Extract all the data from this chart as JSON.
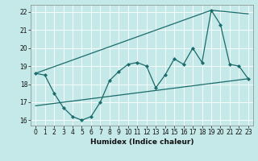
{
  "xlabel": "Humidex (Indice chaleur)",
  "background_color": "#c5e8e8",
  "grid_color": "#ffffff",
  "line_color": "#1a6b6b",
  "xlim": [
    -0.5,
    23.5
  ],
  "ylim": [
    15.7,
    22.4
  ],
  "yticks": [
    16,
    17,
    18,
    19,
    20,
    21,
    22
  ],
  "xticks": [
    0,
    1,
    2,
    3,
    4,
    5,
    6,
    7,
    8,
    9,
    10,
    11,
    12,
    13,
    14,
    15,
    16,
    17,
    18,
    19,
    20,
    21,
    22,
    23
  ],
  "main_x": [
    0,
    1,
    2,
    3,
    4,
    5,
    6,
    7,
    8,
    9,
    10,
    11,
    12,
    13,
    14,
    15,
    16,
    17,
    18,
    19,
    20,
    21,
    22,
    23
  ],
  "main_y": [
    18.6,
    18.5,
    17.5,
    16.7,
    16.2,
    16.0,
    16.2,
    17.0,
    18.2,
    18.7,
    19.1,
    19.2,
    19.0,
    17.8,
    18.5,
    19.4,
    19.1,
    20.0,
    19.2,
    22.1,
    21.3,
    19.1,
    19.0,
    18.3
  ],
  "upper_line_x": [
    0,
    19,
    23
  ],
  "upper_line_y": [
    18.6,
    22.1,
    21.9
  ],
  "lower_line_x": [
    0,
    23
  ],
  "lower_line_y": [
    16.8,
    18.3
  ],
  "figsize": [
    3.2,
    2.0
  ],
  "dpi": 100
}
